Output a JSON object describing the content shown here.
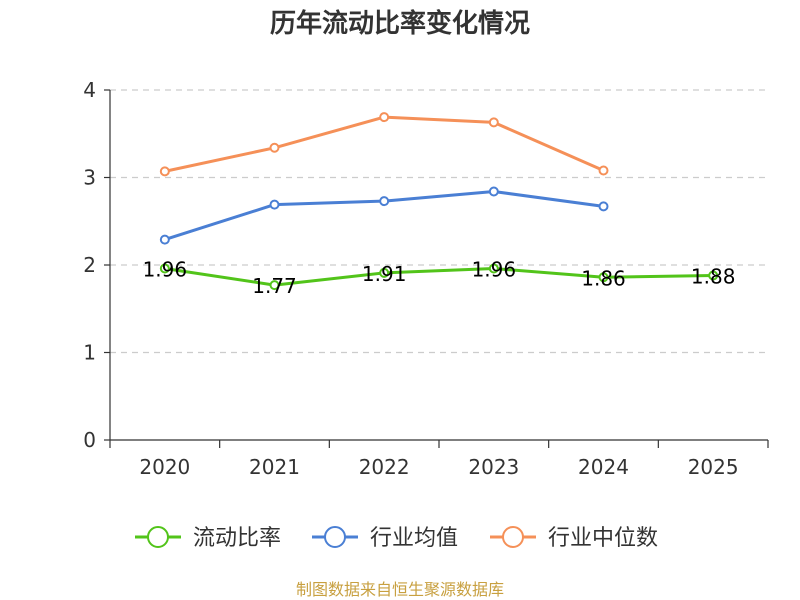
{
  "chart_data": {
    "type": "line",
    "title": "历年流动比率变化情况",
    "categories": [
      "2020",
      "2021",
      "2022",
      "2023",
      "2024",
      "2025"
    ],
    "ylim": [
      0,
      4
    ],
    "yticks": [
      0,
      1,
      2,
      3,
      4
    ],
    "grid": true,
    "legend_position": "bottom",
    "series": [
      {
        "name": "流动比率",
        "color": "#52c41a",
        "values": [
          1.96,
          1.77,
          1.91,
          1.96,
          1.86,
          1.88
        ],
        "labels": [
          "1.96",
          "1.77",
          "1.91",
          "1.96",
          "1.86",
          "1.88"
        ]
      },
      {
        "name": "行业均值",
        "color": "#4a7fd4",
        "values": [
          2.29,
          2.69,
          2.73,
          2.84,
          2.67,
          null
        ]
      },
      {
        "name": "行业中位数",
        "color": "#f59058",
        "values": [
          3.07,
          3.34,
          3.69,
          3.63,
          3.08,
          null
        ]
      }
    ],
    "source": "制图数据来自恒生聚源数据库"
  }
}
